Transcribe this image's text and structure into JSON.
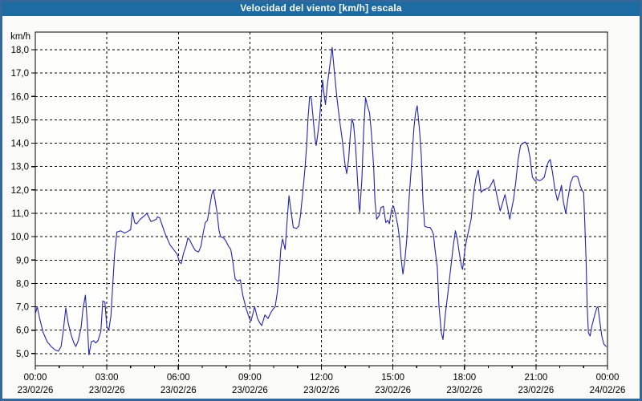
{
  "window": {
    "title": "Velocidad del viento [km/h] escala"
  },
  "colors": {
    "titlebar": "#1d6ba3",
    "frame": "#35689a",
    "background": "#fbfcf9",
    "plot_background": "#fefefc",
    "line": "#2222b2",
    "grid": "#000000",
    "text": "#000000"
  },
  "chart_data": {
    "type": "line",
    "title": "Velocidad del viento [km/h] escala",
    "ylabel": "km/h",
    "ylim": [
      5.0,
      18.0
    ],
    "grid": "dashed",
    "legend_position": "none",
    "ytick_values": [
      18,
      17,
      16,
      15,
      14,
      13,
      12,
      11,
      10,
      9,
      8,
      7,
      6,
      5
    ],
    "ytick_labels": [
      "18,0",
      "17,0",
      "16,0",
      "15,0",
      "14,0",
      "13,0",
      "12,0",
      "11,0",
      "10,0",
      "9,0",
      "8,0",
      "7,0",
      "6,0",
      "5,0"
    ],
    "xlim_hours": [
      0,
      24
    ],
    "x_minor_tick_every_hours": 1,
    "xticks": [
      {
        "hour": 0,
        "time": "00:00",
        "date": "23/02/26"
      },
      {
        "hour": 3,
        "time": "03:00",
        "date": "23/02/26"
      },
      {
        "hour": 6,
        "time": "06:00",
        "date": "23/02/26"
      },
      {
        "hour": 9,
        "time": "09:00",
        "date": "23/02/26"
      },
      {
        "hour": 12,
        "time": "12:00",
        "date": "23/02/26"
      },
      {
        "hour": 15,
        "time": "15:00",
        "date": "23/02/26"
      },
      {
        "hour": 18,
        "time": "18:00",
        "date": "23/02/26"
      },
      {
        "hour": 21,
        "time": "21:00",
        "date": "23/02/26"
      },
      {
        "hour": 24,
        "time": "00:00",
        "date": "24/02/26"
      }
    ],
    "series": [
      {
        "name": "Velocidad del viento [km/h]",
        "points": [
          [
            0.0,
            6.7
          ],
          [
            0.08,
            7.0
          ],
          [
            0.17,
            6.55
          ],
          [
            0.33,
            5.9
          ],
          [
            0.5,
            5.5
          ],
          [
            0.67,
            5.3
          ],
          [
            0.83,
            5.15
          ],
          [
            0.97,
            5.1
          ],
          [
            1.08,
            5.3
          ],
          [
            1.17,
            5.95
          ],
          [
            1.28,
            6.95
          ],
          [
            1.38,
            6.3
          ],
          [
            1.5,
            5.8
          ],
          [
            1.62,
            5.45
          ],
          [
            1.7,
            5.3
          ],
          [
            1.8,
            5.55
          ],
          [
            1.92,
            6.1
          ],
          [
            2.0,
            6.9
          ],
          [
            2.1,
            7.5
          ],
          [
            2.18,
            6.3
          ],
          [
            2.25,
            4.95
          ],
          [
            2.35,
            5.5
          ],
          [
            2.45,
            5.55
          ],
          [
            2.53,
            5.45
          ],
          [
            2.63,
            5.55
          ],
          [
            2.75,
            5.95
          ],
          [
            2.83,
            7.25
          ],
          [
            2.92,
            7.2
          ],
          [
            3.0,
            6.15
          ],
          [
            3.08,
            6.0
          ],
          [
            3.17,
            6.6
          ],
          [
            3.25,
            8.0
          ],
          [
            3.33,
            9.3
          ],
          [
            3.42,
            10.2
          ],
          [
            3.58,
            10.25
          ],
          [
            3.75,
            10.15
          ],
          [
            3.92,
            10.25
          ],
          [
            4.0,
            10.3
          ],
          [
            4.07,
            11.05
          ],
          [
            4.17,
            10.6
          ],
          [
            4.25,
            10.55
          ],
          [
            4.4,
            10.75
          ],
          [
            4.58,
            10.9
          ],
          [
            4.68,
            11.0
          ],
          [
            4.85,
            10.65
          ],
          [
            4.98,
            10.7
          ],
          [
            5.08,
            10.75
          ],
          [
            5.12,
            10.85
          ],
          [
            5.22,
            10.8
          ],
          [
            5.32,
            10.5
          ],
          [
            5.42,
            10.2
          ],
          [
            5.52,
            9.95
          ],
          [
            5.65,
            9.65
          ],
          [
            5.8,
            9.45
          ],
          [
            5.95,
            9.25
          ],
          [
            6.05,
            8.9
          ],
          [
            6.12,
            8.85
          ],
          [
            6.22,
            9.3
          ],
          [
            6.32,
            9.6
          ],
          [
            6.4,
            9.95
          ],
          [
            6.48,
            9.85
          ],
          [
            6.6,
            9.6
          ],
          [
            6.72,
            9.4
          ],
          [
            6.85,
            9.35
          ],
          [
            6.95,
            9.6
          ],
          [
            7.05,
            10.2
          ],
          [
            7.13,
            10.6
          ],
          [
            7.22,
            10.7
          ],
          [
            7.3,
            11.2
          ],
          [
            7.4,
            11.8
          ],
          [
            7.47,
            12.0
          ],
          [
            7.55,
            11.5
          ],
          [
            7.62,
            11.05
          ],
          [
            7.7,
            10.3
          ],
          [
            7.77,
            10.0
          ],
          [
            7.9,
            9.95
          ],
          [
            8.0,
            9.8
          ],
          [
            8.1,
            9.6
          ],
          [
            8.2,
            9.45
          ],
          [
            8.28,
            8.95
          ],
          [
            8.38,
            8.2
          ],
          [
            8.48,
            8.1
          ],
          [
            8.6,
            8.15
          ],
          [
            8.7,
            7.5
          ],
          [
            8.85,
            6.9
          ],
          [
            9.0,
            6.45
          ],
          [
            9.05,
            6.4
          ],
          [
            9.2,
            7.0
          ],
          [
            9.32,
            6.5
          ],
          [
            9.42,
            6.3
          ],
          [
            9.5,
            6.2
          ],
          [
            9.63,
            6.65
          ],
          [
            9.76,
            6.5
          ],
          [
            9.88,
            6.75
          ],
          [
            9.97,
            6.9
          ],
          [
            10.06,
            7.0
          ],
          [
            10.15,
            7.6
          ],
          [
            10.22,
            8.3
          ],
          [
            10.3,
            9.5
          ],
          [
            10.37,
            9.9
          ],
          [
            10.42,
            9.7
          ],
          [
            10.48,
            9.45
          ],
          [
            10.55,
            10.5
          ],
          [
            10.64,
            11.75
          ],
          [
            10.74,
            11.0
          ],
          [
            10.82,
            10.4
          ],
          [
            10.95,
            10.35
          ],
          [
            11.05,
            10.45
          ],
          [
            11.12,
            10.9
          ],
          [
            11.22,
            11.9
          ],
          [
            11.31,
            12.9
          ],
          [
            11.38,
            13.9
          ],
          [
            11.44,
            15.1
          ],
          [
            11.51,
            16.0
          ],
          [
            11.58,
            15.9
          ],
          [
            11.66,
            15.0
          ],
          [
            11.73,
            14.2
          ],
          [
            11.78,
            13.9
          ],
          [
            11.85,
            14.4
          ],
          [
            11.92,
            15.0
          ],
          [
            11.98,
            15.8
          ],
          [
            12.05,
            16.7
          ],
          [
            12.12,
            16.0
          ],
          [
            12.17,
            15.65
          ],
          [
            12.25,
            16.5
          ],
          [
            12.35,
            17.3
          ],
          [
            12.45,
            18.1
          ],
          [
            12.55,
            17.0
          ],
          [
            12.65,
            15.95
          ],
          [
            12.76,
            15.0
          ],
          [
            12.87,
            14.2
          ],
          [
            12.99,
            13.1
          ],
          [
            13.06,
            12.7
          ],
          [
            13.14,
            13.3
          ],
          [
            13.21,
            14.3
          ],
          [
            13.28,
            15.05
          ],
          [
            13.35,
            14.8
          ],
          [
            13.43,
            13.9
          ],
          [
            13.51,
            12.5
          ],
          [
            13.58,
            11.3
          ],
          [
            13.61,
            11.05
          ],
          [
            13.7,
            12.5
          ],
          [
            13.77,
            14.5
          ],
          [
            13.85,
            15.95
          ],
          [
            13.93,
            15.6
          ],
          [
            14.02,
            15.3
          ],
          [
            14.1,
            14.4
          ],
          [
            14.19,
            13.0
          ],
          [
            14.25,
            11.5
          ],
          [
            14.32,
            10.75
          ],
          [
            14.42,
            10.9
          ],
          [
            14.5,
            11.25
          ],
          [
            14.6,
            11.3
          ],
          [
            14.7,
            10.6
          ],
          [
            14.78,
            10.7
          ],
          [
            14.85,
            10.55
          ],
          [
            14.95,
            11.2
          ],
          [
            15.03,
            11.3
          ],
          [
            15.12,
            10.9
          ],
          [
            15.2,
            10.5
          ],
          [
            15.28,
            9.9
          ],
          [
            15.35,
            9.0
          ],
          [
            15.42,
            8.4
          ],
          [
            15.5,
            9.0
          ],
          [
            15.58,
            9.9
          ],
          [
            15.68,
            11.65
          ],
          [
            15.78,
            13.1
          ],
          [
            15.88,
            14.65
          ],
          [
            15.95,
            15.3
          ],
          [
            16.02,
            15.6
          ],
          [
            16.12,
            14.5
          ],
          [
            16.19,
            13.45
          ],
          [
            16.26,
            11.5
          ],
          [
            16.33,
            10.45
          ],
          [
            16.45,
            10.4
          ],
          [
            16.55,
            10.4
          ],
          [
            16.62,
            10.3
          ],
          [
            16.7,
            10.1
          ],
          [
            16.76,
            9.5
          ],
          [
            16.86,
            8.7
          ],
          [
            16.93,
            7.05
          ],
          [
            17.03,
            5.9
          ],
          [
            17.1,
            5.6
          ],
          [
            17.2,
            6.7
          ],
          [
            17.3,
            7.55
          ],
          [
            17.43,
            8.7
          ],
          [
            17.53,
            9.6
          ],
          [
            17.62,
            10.25
          ],
          [
            17.7,
            9.9
          ],
          [
            17.77,
            9.4
          ],
          [
            17.87,
            8.75
          ],
          [
            17.92,
            8.6
          ],
          [
            18.04,
            9.6
          ],
          [
            18.14,
            10.1
          ],
          [
            18.28,
            10.75
          ],
          [
            18.38,
            11.8
          ],
          [
            18.48,
            12.5
          ],
          [
            18.58,
            12.85
          ],
          [
            18.7,
            11.9
          ],
          [
            18.8,
            12.0
          ],
          [
            18.92,
            12.05
          ],
          [
            19.05,
            12.1
          ],
          [
            19.15,
            12.3
          ],
          [
            19.22,
            12.45
          ],
          [
            19.35,
            11.8
          ],
          [
            19.5,
            11.1
          ],
          [
            19.6,
            11.45
          ],
          [
            19.7,
            11.8
          ],
          [
            19.8,
            11.3
          ],
          [
            19.9,
            10.75
          ],
          [
            20.0,
            11.3
          ],
          [
            20.05,
            11.55
          ],
          [
            20.15,
            12.3
          ],
          [
            20.25,
            13.3
          ],
          [
            20.35,
            13.9
          ],
          [
            20.45,
            14.0
          ],
          [
            20.55,
            14.05
          ],
          [
            20.65,
            13.9
          ],
          [
            20.75,
            13.4
          ],
          [
            20.85,
            12.55
          ],
          [
            20.95,
            12.4
          ],
          [
            21.05,
            12.45
          ],
          [
            21.15,
            12.4
          ],
          [
            21.25,
            12.45
          ],
          [
            21.35,
            12.55
          ],
          [
            21.45,
            13.0
          ],
          [
            21.52,
            13.2
          ],
          [
            21.6,
            13.3
          ],
          [
            21.7,
            12.7
          ],
          [
            21.8,
            12.0
          ],
          [
            21.9,
            11.55
          ],
          [
            22.0,
            11.9
          ],
          [
            22.07,
            12.2
          ],
          [
            22.15,
            11.5
          ],
          [
            22.25,
            11.0
          ],
          [
            22.35,
            11.7
          ],
          [
            22.45,
            12.3
          ],
          [
            22.55,
            12.55
          ],
          [
            22.65,
            12.6
          ],
          [
            22.75,
            12.55
          ],
          [
            22.85,
            12.2
          ],
          [
            22.95,
            11.95
          ],
          [
            23.0,
            11.9
          ],
          [
            23.05,
            10.5
          ],
          [
            23.1,
            9.0
          ],
          [
            23.15,
            7.0
          ],
          [
            23.2,
            5.9
          ],
          [
            23.27,
            5.75
          ],
          [
            23.35,
            6.2
          ],
          [
            23.45,
            6.6
          ],
          [
            23.55,
            6.95
          ],
          [
            23.6,
            7.0
          ],
          [
            23.7,
            6.2
          ],
          [
            23.76,
            5.75
          ],
          [
            23.85,
            5.4
          ],
          [
            23.95,
            5.3
          ]
        ]
      }
    ]
  }
}
